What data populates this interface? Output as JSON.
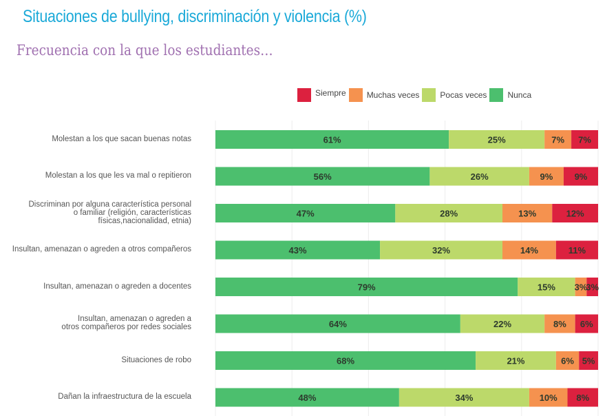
{
  "title": "Situaciones de bullying, discriminación y violencia (%)",
  "subtitle": "Frecuencia con la que los estudiantes…",
  "chart_data": {
    "type": "bar",
    "orientation": "horizontal-stacked-100",
    "xlim": [
      0,
      100
    ],
    "grid": true,
    "legend_position": "top",
    "categories": [
      "Molestan a los que sacan buenas notas",
      "Molestan a los que les va mal o repitieron",
      "Discriminan por alguna característica personal o familiar (religión, características físicas,nacionalidad, etnia)",
      "Insultan, amenazan o agreden a otros compañeros",
      "Insultan, amenazan o agreden a docentes",
      "Insultan, amenazan o agreden a otros compañeros por redes sociales",
      "Situaciones de robo",
      "Dañan la infraestructura de la escuela"
    ],
    "category_lines": [
      [
        "Molestan a los que sacan buenas notas"
      ],
      [
        "Molestan a los que les va mal o repitieron"
      ],
      [
        "Discriminan por alguna característica personal",
        "o familiar (religión, características",
        "físicas,nacionalidad, etnia)"
      ],
      [
        "Insultan, amenazan o agreden a otros compañeros"
      ],
      [
        "Insultan, amenazan o agreden a docentes"
      ],
      [
        "Insultan, amenazan o agreden a",
        "otros compañeros por redes sociales"
      ],
      [
        "Situaciones de robo"
      ],
      [
        "Dañan la infraestructura de la escuela"
      ]
    ],
    "series": [
      {
        "name": "Nunca",
        "color": "#4cbf6e",
        "values": [
          61,
          56,
          47,
          43,
          79,
          64,
          68,
          48
        ]
      },
      {
        "name": "Pocas veces",
        "color": "#bcd96a",
        "values": [
          25,
          26,
          28,
          32,
          15,
          22,
          21,
          34
        ]
      },
      {
        "name": "Muchas veces",
        "color": "#f5924f",
        "values": [
          7,
          9,
          13,
          14,
          3,
          8,
          6,
          10
        ]
      },
      {
        "name": "Siempre",
        "color": "#dc213f",
        "values": [
          7,
          9,
          12,
          11,
          3,
          6,
          5,
          8
        ]
      }
    ],
    "legend_order": [
      "Siempre",
      "Muchas veces",
      "Pocas veces",
      "Nunca"
    ]
  }
}
